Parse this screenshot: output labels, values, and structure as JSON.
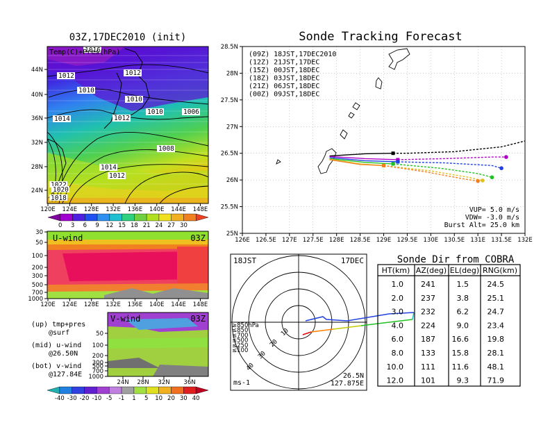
{
  "left_map": {
    "title": "03Z,17DEC2010 (init)",
    "overlay_label": "Temp(C)+Pres(hPa)",
    "y_ticks": [
      "44N",
      "40N",
      "36N",
      "32N",
      "28N",
      "24N"
    ],
    "x_ticks": [
      "120E",
      "124E",
      "128E",
      "132E",
      "136E",
      "140E",
      "144E",
      "148E"
    ],
    "isobars": [
      "1016",
      "1012",
      "1012",
      "1010",
      "1010",
      "1010",
      "1006",
      "1014",
      "1012",
      "1008",
      "1014",
      "1012",
      "1022",
      "1020",
      "1018"
    ],
    "colorbar_labels": [
      "0",
      "3",
      "6",
      "9",
      "12",
      "15",
      "18",
      "21",
      "24",
      "27",
      "30"
    ]
  },
  "u_wind": {
    "label": "U-wind",
    "time": "03Z",
    "y_ticks": [
      "30",
      "50",
      "100",
      "200",
      "300",
      "500",
      "700",
      "1000"
    ],
    "x_ticks": [
      "120E",
      "124E",
      "128E",
      "132E",
      "136E",
      "140E",
      "144E",
      "148E"
    ]
  },
  "v_wind": {
    "label": "V-wind",
    "time": "03Z",
    "y_ticks": [
      "50",
      "100",
      "200",
      "300",
      "500",
      "700",
      "1000"
    ],
    "x_ticks": [
      "24N",
      "28N",
      "32N",
      "36N"
    ],
    "colorbar_labels": [
      "-40",
      "-30",
      "-20",
      "-10",
      "-5",
      "-1",
      "1",
      "5",
      "10",
      "20",
      "30",
      "40"
    ]
  },
  "legend_notes": {
    "up1": "(up) tmp+pres",
    "up2": "@surf",
    "mid1": "(mid) u-wind",
    "mid2": "@26.50N",
    "bot1": "(bot) v-wind",
    "bot2": "@127.84E"
  },
  "tracking": {
    "title": "Sonde Tracking Forecast",
    "y_ticks": [
      "28.5N",
      "28N",
      "27.5N",
      "27N",
      "26.5N",
      "26N",
      "25.5N",
      "25N"
    ],
    "x_ticks": [
      "126E",
      "126.5E",
      "127E",
      "127.5E",
      "128E",
      "128.5E",
      "129E",
      "129.5E",
      "130E",
      "130.5E",
      "131E",
      "131.5E",
      "132E"
    ],
    "params": [
      "VUP=  5.0  m/s",
      "VDW= -3.0  m/s",
      "Burst Alt= 25.0  km"
    ]
  },
  "chart_data": {
    "type": "line",
    "title": "Sonde Tracking Forecast",
    "xlim": [
      126,
      132
    ],
    "ylim": [
      25,
      28.5
    ],
    "series": [
      {
        "name": "(09Z)  18JST,17DEC2010",
        "color": "#000000",
        "x": [
          127.85,
          128.6,
          129.2,
          129.5,
          130.5,
          131.5,
          132.0
        ],
        "y": [
          26.45,
          26.49,
          26.5,
          26.5,
          26.53,
          26.62,
          26.73
        ]
      },
      {
        "name": "(12Z)  21JST,17DEC",
        "color": "#b000c8",
        "x": [
          127.85,
          128.6,
          129.3,
          130.3,
          131.3,
          131.6
        ],
        "y": [
          26.44,
          26.4,
          26.38,
          26.4,
          26.43,
          26.43
        ]
      },
      {
        "name": "(15Z)  00JST,18DEC",
        "color": "#2040e0",
        "x": [
          127.85,
          128.6,
          129.3,
          130.3,
          131.3,
          131.5
        ],
        "y": [
          26.42,
          26.36,
          26.34,
          26.32,
          26.27,
          26.22
        ]
      },
      {
        "name": "(18Z)  03JST,18DEC",
        "color": "#20c020",
        "x": [
          127.85,
          128.6,
          129.2,
          130.2,
          131.0,
          131.3
        ],
        "y": [
          26.4,
          26.33,
          26.3,
          26.22,
          26.12,
          26.05
        ]
      },
      {
        "name": "(21Z)  06JST,18DEC",
        "color": "#e0c020",
        "x": [
          127.85,
          128.5,
          129.0,
          130.0,
          130.8,
          131.1
        ],
        "y": [
          26.39,
          26.3,
          26.27,
          26.17,
          26.05,
          25.99
        ]
      },
      {
        "name": "(00Z)  09JST,18DEC",
        "color": "#f08020",
        "x": [
          127.85,
          128.5,
          129.0,
          129.9,
          130.7,
          131.0
        ],
        "y": [
          26.38,
          26.29,
          26.27,
          26.15,
          26.02,
          25.98
        ]
      }
    ]
  },
  "polar": {
    "time_label": "18JST",
    "date_label": "17DEC",
    "range_labels": [
      "10",
      "20",
      "30",
      "40"
    ],
    "levels": [
      {
        "label": "≥850hPa",
        "color": "#e00000"
      },
      {
        "label": "≤850",
        "color": "#ff8000"
      },
      {
        "label": "≤700",
        "color": "#c8c800"
      },
      {
        "label": "≤500",
        "color": "#20c020"
      },
      {
        "label": "≤250",
        "color": "#20c0c0"
      },
      {
        "label": "≤100",
        "color": "#2040e0"
      }
    ],
    "unit": "ms-1",
    "coord1": "26.5N",
    "coord2": "127.875E"
  },
  "table": {
    "title": "Sonde Dir from COBRA",
    "headers": [
      "HT(km)",
      "AZ(deg)",
      "EL(deg)",
      "RNG(km)"
    ],
    "rows": [
      [
        "1.0",
        "241",
        "1.5",
        "24.5"
      ],
      [
        "2.0",
        "237",
        "3.8",
        "25.1"
      ],
      [
        "3.0",
        "232",
        "6.2",
        "24.7"
      ],
      [
        "4.0",
        "224",
        "9.0",
        "23.4"
      ],
      [
        "6.0",
        "187",
        "16.6",
        "19.8"
      ],
      [
        "8.0",
        "133",
        "15.8",
        "28.1"
      ],
      [
        "10.0",
        "111",
        "11.6",
        "48.1"
      ],
      [
        "12.0",
        "101",
        "9.3",
        "71.9"
      ]
    ]
  }
}
